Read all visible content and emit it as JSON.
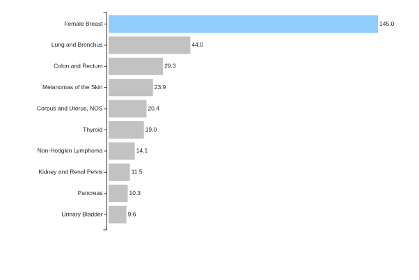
{
  "chart_data": {
    "type": "bar",
    "orientation": "horizontal",
    "categories": [
      "Female Breast",
      "Lung and Bronchus",
      "Colon and Rectum",
      "Melanomas of the Skin",
      "Corpus and Uterus, NOS",
      "Thyroid",
      "Non-Hodgkin Lymphoma",
      "Kidney and Renal Pelvis",
      "Pancreas",
      "Urinary Bladder"
    ],
    "values": [
      145.0,
      44.0,
      29.3,
      23.9,
      20.4,
      19.0,
      14.1,
      11.5,
      10.3,
      9.6
    ],
    "value_labels": [
      "145.0",
      "44.0",
      "29.3",
      "23.9",
      "20.4",
      "19.0",
      "14.1",
      "11.5",
      "10.3",
      "9.6"
    ],
    "highlight_index": 0,
    "xlim": [
      0,
      145.0
    ],
    "grid": false,
    "colors": {
      "highlight": "#90cdfb",
      "default": "#c2c2c2",
      "axis": "#333333"
    }
  }
}
